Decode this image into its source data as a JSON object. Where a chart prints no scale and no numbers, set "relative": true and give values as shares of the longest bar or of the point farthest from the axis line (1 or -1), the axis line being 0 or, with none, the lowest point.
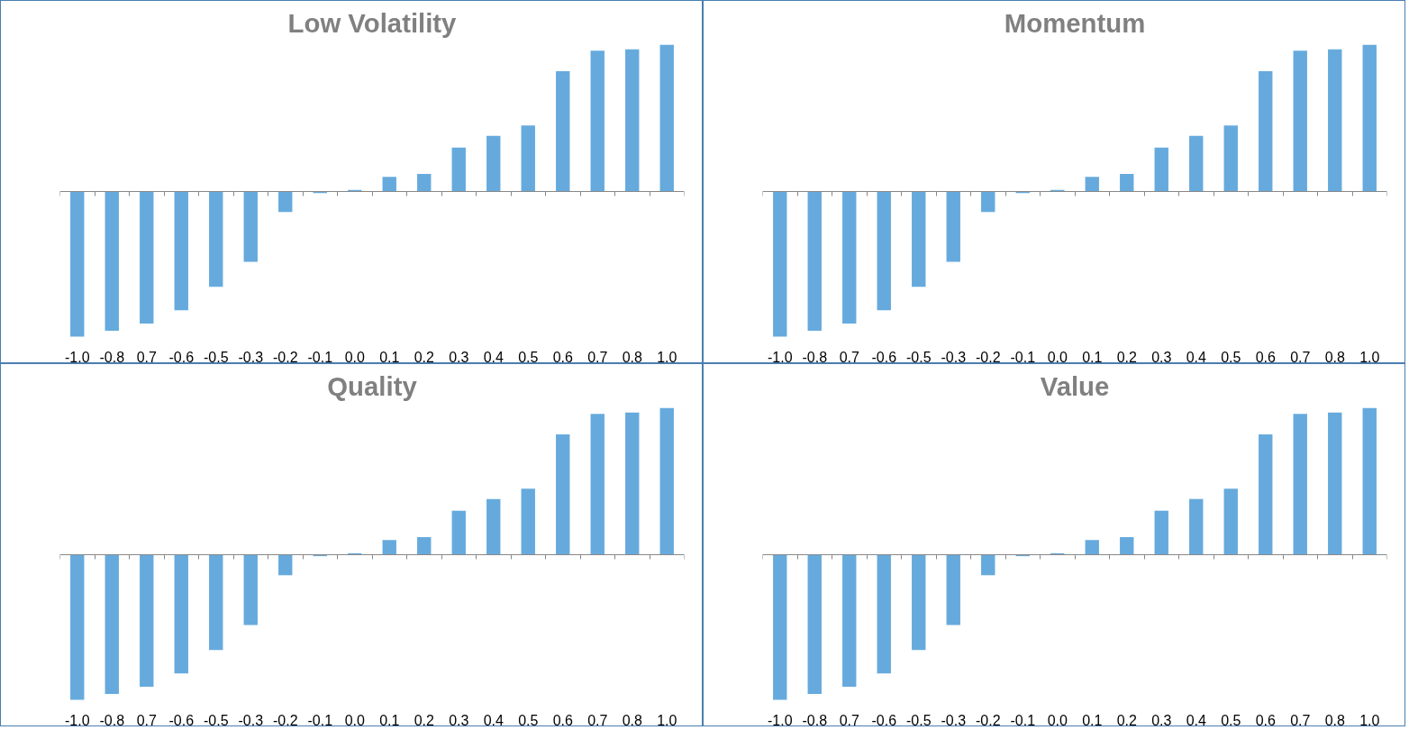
{
  "chart_data": [
    {
      "type": "bar",
      "title": "Low Volatility",
      "relative": true,
      "color": "#66aadd",
      "categories": [
        "-1.0",
        "-0.8",
        "0.7",
        "-0.6",
        "-0.5",
        "-0.3",
        "-0.2",
        "-0.1",
        "0.0",
        "0.1",
        "0.2",
        "0.3",
        "0.4",
        "0.5",
        "0.6",
        "0.7",
        "0.8",
        "1.0"
      ],
      "values": [
        -0.99,
        -0.95,
        -0.9,
        -0.81,
        -0.65,
        -0.48,
        -0.14,
        -0.01,
        0.01,
        0.1,
        0.12,
        0.3,
        0.38,
        0.45,
        0.82,
        0.96,
        0.97,
        1.0
      ],
      "grid": false
    },
    {
      "type": "bar",
      "title": "Momentum",
      "relative": true,
      "color": "#66aadd",
      "categories": [
        "-1.0",
        "-0.8",
        "0.7",
        "-0.6",
        "-0.5",
        "-0.3",
        "-0.2",
        "-0.1",
        "0.0",
        "0.1",
        "0.2",
        "0.3",
        "0.4",
        "0.5",
        "0.6",
        "0.7",
        "0.8",
        "1.0"
      ],
      "values": [
        -0.99,
        -0.95,
        -0.9,
        -0.81,
        -0.65,
        -0.48,
        -0.14,
        -0.01,
        0.01,
        0.1,
        0.12,
        0.3,
        0.38,
        0.45,
        0.82,
        0.96,
        0.97,
        1.0
      ],
      "grid": false
    },
    {
      "type": "bar",
      "title": "Quality",
      "relative": true,
      "color": "#66aadd",
      "categories": [
        "-1.0",
        "-0.8",
        "0.7",
        "-0.6",
        "-0.5",
        "-0.3",
        "-0.2",
        "-0.1",
        "0.0",
        "0.1",
        "0.2",
        "0.3",
        "0.4",
        "0.5",
        "0.6",
        "0.7",
        "0.8",
        "1.0"
      ],
      "values": [
        -0.99,
        -0.95,
        -0.9,
        -0.81,
        -0.65,
        -0.48,
        -0.14,
        -0.01,
        0.01,
        0.1,
        0.12,
        0.3,
        0.38,
        0.45,
        0.82,
        0.96,
        0.97,
        1.0
      ],
      "grid": false
    },
    {
      "type": "bar",
      "title": "Value",
      "relative": true,
      "color": "#66aadd",
      "categories": [
        "-1.0",
        "-0.8",
        "0.7",
        "-0.6",
        "-0.5",
        "-0.3",
        "-0.2",
        "-0.1",
        "0.0",
        "0.1",
        "0.2",
        "0.3",
        "0.4",
        "0.5",
        "0.6",
        "0.7",
        "0.8",
        "1.0"
      ],
      "values": [
        -0.99,
        -0.95,
        -0.9,
        -0.81,
        -0.65,
        -0.48,
        -0.14,
        -0.01,
        0.01,
        0.1,
        0.12,
        0.3,
        0.38,
        0.45,
        0.82,
        0.96,
        0.97,
        1.0
      ],
      "grid": false
    }
  ]
}
